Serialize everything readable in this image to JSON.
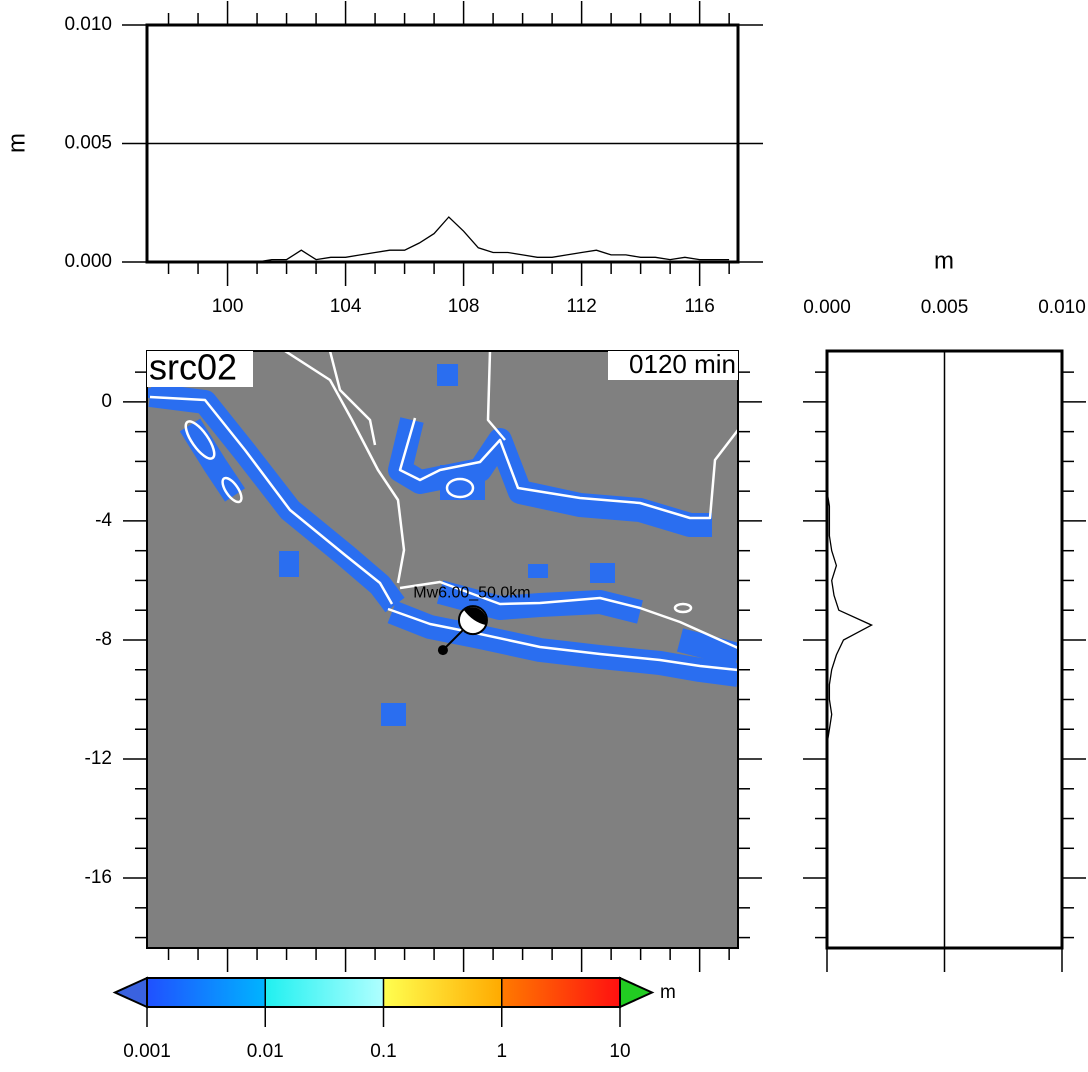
{
  "top_profile": {
    "ylabel": "m",
    "xlim": [
      97.27,
      117.3
    ],
    "ylim": [
      0,
      0.01
    ],
    "xticks": [
      100,
      104,
      108,
      112,
      116
    ],
    "xminor": [
      98,
      99,
      101,
      102,
      103,
      105,
      106,
      107,
      109,
      110,
      111,
      113,
      114,
      115,
      117
    ],
    "yticks": [
      {
        "value": 0,
        "label": "0.000"
      },
      {
        "value": 0.005,
        "label": "0.005"
      },
      {
        "value": 0.01,
        "label": "0.010"
      }
    ],
    "grid": true,
    "x": [
      97.5,
      98,
      98.5,
      99,
      99.5,
      100,
      100.5,
      101,
      101.5,
      102,
      102.5,
      103,
      103.5,
      104,
      104.5,
      105,
      105.5,
      106,
      106.5,
      107,
      107.5,
      108,
      108.5,
      109,
      109.5,
      110,
      110.5,
      111,
      111.5,
      112,
      112.5,
      113,
      113.5,
      114,
      114.5,
      115,
      115.5,
      116,
      116.5,
      117
    ],
    "values": [
      0,
      0,
      0,
      0,
      0,
      0,
      0,
      0,
      0.0001,
      0.0001,
      0.0005,
      0.0001,
      0.0002,
      0.0002,
      0.0003,
      0.0004,
      0.0005,
      0.0005,
      0.0008,
      0.0012,
      0.0019,
      0.0013,
      0.0006,
      0.0004,
      0.0004,
      0.0003,
      0.0002,
      0.0002,
      0.0003,
      0.0004,
      0.0005,
      0.0003,
      0.0003,
      0.0002,
      0.0002,
      0.0001,
      0.0002,
      0.0001,
      0.0001,
      0.0001
    ]
  },
  "side_profile": {
    "xlabel": "m",
    "xlim": [
      0,
      0.01
    ],
    "ylim": [
      -18.35,
      1.71
    ],
    "xticks": [
      {
        "value": 0,
        "label": "0.000"
      },
      {
        "value": 0.005,
        "label": "0.005"
      },
      {
        "value": 0.01,
        "label": "0.010"
      }
    ],
    "yticks": [
      0,
      -4,
      -8,
      -12,
      -16
    ],
    "yminor": [
      1,
      -1,
      -2,
      -3,
      -5,
      -6,
      -7,
      -9,
      -10,
      -11,
      -13,
      -14,
      -15,
      -17,
      -18
    ],
    "grid": true,
    "y": [
      1.5,
      1,
      0.5,
      0,
      -0.5,
      -1,
      -1.5,
      -2,
      -2.5,
      -3,
      -3.5,
      -4,
      -4.5,
      -5,
      -5.5,
      -6,
      -6.5,
      -7,
      -7.5,
      -8,
      -8.5,
      -9,
      -9.5,
      -10,
      -10.5,
      -11,
      -11.5,
      -12,
      -12.5,
      -13,
      -13.5,
      -14,
      -14.5,
      -15,
      -15.5,
      -16,
      -16.5,
      -17,
      -17.5,
      -18
    ],
    "values": [
      0,
      0,
      0,
      0,
      0,
      0,
      0,
      0,
      0,
      0,
      0.0001,
      0.0001,
      0.0001,
      0.0002,
      0.0004,
      0.0002,
      0.0003,
      0.0005,
      0.0019,
      0.0007,
      0.0004,
      0.0002,
      0.0001,
      0.0001,
      0.0002,
      0.0001,
      0,
      0,
      0,
      0,
      0,
      0,
      0,
      0,
      0,
      0,
      0,
      0,
      0,
      0
    ]
  },
  "map": {
    "source": "src02",
    "time": "0120 min",
    "annotation": "Mw6.00_50.0km",
    "xlim": [
      97.27,
      117.3
    ],
    "ylim": [
      -18.35,
      1.71
    ],
    "xticks": [
      100,
      104,
      108,
      112,
      116
    ],
    "xminor": [
      98,
      99,
      101,
      102,
      103,
      105,
      106,
      107,
      109,
      110,
      111,
      113,
      114,
      115,
      117
    ],
    "yticks": [
      0,
      -4,
      -8,
      -12,
      -16
    ],
    "yminor": [
      1,
      -1,
      -2,
      -3,
      -5,
      -6,
      -7,
      -9,
      -10,
      -11,
      -13,
      -14,
      -15,
      -17,
      -18
    ],
    "epicenter": {
      "x": 107.3,
      "y": -8.34
    }
  },
  "colorbar": {
    "label": "m",
    "log": true,
    "ticks": [
      0.001,
      0.01,
      0.1,
      1,
      10
    ],
    "colors": [
      [
        "#2050ff",
        "#00b4ff"
      ],
      [
        "#20f0f0",
        "#b0ffff"
      ],
      [
        "#ffff50",
        "#ffaa00"
      ],
      [
        "#ff7a00",
        "#ff1010"
      ]
    ],
    "under_color": "#3a62e0",
    "over_color": "#22cc22"
  }
}
